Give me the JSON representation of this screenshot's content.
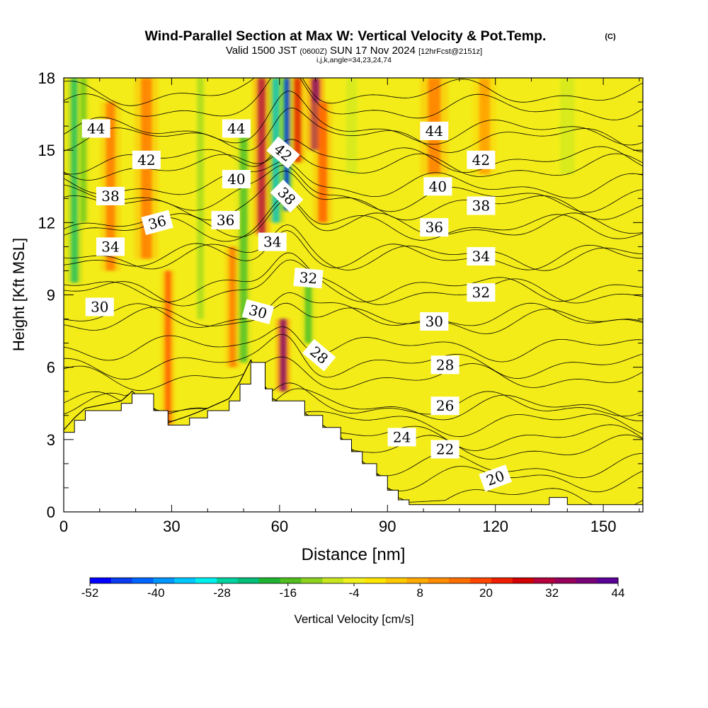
{
  "chart_data": {
    "type": "heatmap",
    "title": "Wind-Parallel Section at Max W: Vertical Velocity & Pot.Temp.",
    "title_mark": "(C)",
    "subtitle": {
      "prefix": "Valid 1500 JST",
      "utc": "(0600Z)",
      "date": "SUN 17 Nov 2024",
      "fcst": "[12hrFcst@2151z]",
      "params": "i,j,k,angle=34,23,24,74"
    },
    "xlabel": "Distance [nm]",
    "ylabel": "Height [Kft MSL]",
    "xlim": [
      0,
      161
    ],
    "ylim": [
      0,
      18
    ],
    "x_ticks": [
      0,
      30,
      60,
      90,
      120,
      150
    ],
    "y_ticks": [
      0,
      3,
      6,
      9,
      12,
      15,
      18
    ],
    "colorbar": {
      "label": "Vertical Velocity [cm/s]",
      "tick_labels": [
        "-52",
        "-40",
        "-28",
        "-16",
        "-4",
        "8",
        "20",
        "32",
        "44"
      ],
      "min": -52,
      "max": 44,
      "colors": [
        "#0000ff",
        "#0a3cf0",
        "#0064ff",
        "#0096ff",
        "#00c8ff",
        "#00f0f0",
        "#00d2a0",
        "#00be78",
        "#1eb432",
        "#50be1e",
        "#8cd21e",
        "#c8e61e",
        "#f0f01e",
        "#ffe600",
        "#ffc800",
        "#ffaa00",
        "#ff8c00",
        "#ff6e00",
        "#ff4600",
        "#f01e00",
        "#d20000",
        "#b4003c",
        "#96005a",
        "#780078",
        "#5a0096"
      ]
    },
    "contour_labels": [
      {
        "value": 44,
        "x": 9,
        "y": 15.9,
        "rot": 0
      },
      {
        "value": 44,
        "x": 48,
        "y": 15.9,
        "rot": 0
      },
      {
        "value": 44,
        "x": 103,
        "y": 15.8,
        "rot": 0
      },
      {
        "value": 42,
        "x": 23,
        "y": 14.6,
        "rot": 0
      },
      {
        "value": 42,
        "x": 61,
        "y": 14.9,
        "rot": 40
      },
      {
        "value": 42,
        "x": 116,
        "y": 14.6,
        "rot": 0
      },
      {
        "value": 40,
        "x": 48,
        "y": 13.8,
        "rot": 0
      },
      {
        "value": 40,
        "x": 104,
        "y": 13.5,
        "rot": 0
      },
      {
        "value": 38,
        "x": 13,
        "y": 13.1,
        "rot": 0
      },
      {
        "value": 38,
        "x": 62,
        "y": 13.1,
        "rot": 45
      },
      {
        "value": 38,
        "x": 116,
        "y": 12.7,
        "rot": 0
      },
      {
        "value": 36,
        "x": 26,
        "y": 12.0,
        "rot": -15
      },
      {
        "value": 36,
        "x": 45,
        "y": 12.1,
        "rot": 0
      },
      {
        "value": 36,
        "x": 103,
        "y": 11.8,
        "rot": 0
      },
      {
        "value": 34,
        "x": 13,
        "y": 11.0,
        "rot": 0
      },
      {
        "value": 34,
        "x": 58,
        "y": 11.2,
        "rot": 0
      },
      {
        "value": 34,
        "x": 116,
        "y": 10.6,
        "rot": 0
      },
      {
        "value": 32,
        "x": 68,
        "y": 9.7,
        "rot": 5
      },
      {
        "value": 32,
        "x": 116,
        "y": 9.1,
        "rot": 0
      },
      {
        "value": 30,
        "x": 10,
        "y": 8.5,
        "rot": 0
      },
      {
        "value": 30,
        "x": 54,
        "y": 8.3,
        "rot": 15
      },
      {
        "value": 30,
        "x": 103,
        "y": 7.9,
        "rot": 0
      },
      {
        "value": 28,
        "x": 71,
        "y": 6.5,
        "rot": 40
      },
      {
        "value": 28,
        "x": 106,
        "y": 6.1,
        "rot": 0
      },
      {
        "value": 26,
        "x": 106,
        "y": 4.4,
        "rot": 0
      },
      {
        "value": 24,
        "x": 94,
        "y": 3.1,
        "rot": 0
      },
      {
        "value": 22,
        "x": 106,
        "y": 2.6,
        "rot": 0
      },
      {
        "value": 20,
        "x": 120,
        "y": 1.4,
        "rot": -20
      }
    ],
    "terrain_kft": [
      [
        0,
        3.3
      ],
      [
        3,
        3.8
      ],
      [
        6,
        4.2
      ],
      [
        16,
        4.5
      ],
      [
        19,
        4.9
      ],
      [
        25,
        4.2
      ],
      [
        29,
        3.6
      ],
      [
        35,
        3.9
      ],
      [
        40,
        4.2
      ],
      [
        46,
        4.6
      ],
      [
        49,
        5.3
      ],
      [
        52,
        6.2
      ],
      [
        56,
        5.1
      ],
      [
        58,
        4.6
      ],
      [
        67,
        4.0
      ],
      [
        72,
        3.5
      ],
      [
        77,
        3.0
      ],
      [
        80,
        2.5
      ],
      [
        83,
        2.0
      ],
      [
        87,
        1.5
      ],
      [
        90,
        0.9
      ],
      [
        93,
        0.5
      ],
      [
        96,
        0.3
      ],
      [
        135,
        0.6
      ],
      [
        140,
        0.3
      ],
      [
        161,
        0.0
      ]
    ],
    "wv_features": [
      {
        "x": 3,
        "y0": 9.5,
        "y1": 18,
        "w": -24,
        "width": 2.0
      },
      {
        "x": 5.5,
        "y0": 12.0,
        "y1": 18,
        "w": -14,
        "width": 1.6
      },
      {
        "x": 13,
        "y0": 10.0,
        "y1": 17,
        "w": 14,
        "width": 2.5
      },
      {
        "x": 23,
        "y0": 10.5,
        "y1": 18,
        "w": 16,
        "width": 3.0
      },
      {
        "x": 29,
        "y0": 3.6,
        "y1": 10.0,
        "w": 18,
        "width": 1.8
      },
      {
        "x": 38,
        "y0": 8.0,
        "y1": 18,
        "w": -12,
        "width": 2.0
      },
      {
        "x": 47,
        "y0": 6.0,
        "y1": 11.0,
        "w": 14,
        "width": 2.0
      },
      {
        "x": 50,
        "y0": 6.2,
        "y1": 16.0,
        "w": -18,
        "width": 2.2
      },
      {
        "x": 55,
        "y0": 11.5,
        "y1": 18,
        "w": 36,
        "width": 2.2
      },
      {
        "x": 59,
        "y0": 12.0,
        "y1": 18,
        "w": -34,
        "width": 2.0
      },
      {
        "x": 62,
        "y0": 12.5,
        "y1": 18,
        "w": -50,
        "width": 1.5
      },
      {
        "x": 65,
        "y0": 14.5,
        "y1": 18,
        "w": 28,
        "width": 2.0
      },
      {
        "x": 70,
        "y0": 15.0,
        "y1": 18,
        "w": 42,
        "width": 2.2
      },
      {
        "x": 72,
        "y0": 12.0,
        "y1": 17,
        "w": 20,
        "width": 2.5
      },
      {
        "x": 61,
        "y0": 5.0,
        "y1": 8.0,
        "w": 42,
        "width": 1.8
      },
      {
        "x": 68,
        "y0": 7.0,
        "y1": 10.0,
        "w": -18,
        "width": 2.0
      },
      {
        "x": 80,
        "y0": 14.0,
        "y1": 18,
        "w": -8,
        "width": 3.0
      },
      {
        "x": 103,
        "y0": 14.0,
        "y1": 18,
        "w": 14,
        "width": 3.5
      },
      {
        "x": 117,
        "y0": 14.0,
        "y1": 18,
        "w": 10,
        "width": 3.0
      },
      {
        "x": 140,
        "y0": 14.0,
        "y1": 18,
        "w": -6,
        "width": 4.0
      }
    ]
  }
}
